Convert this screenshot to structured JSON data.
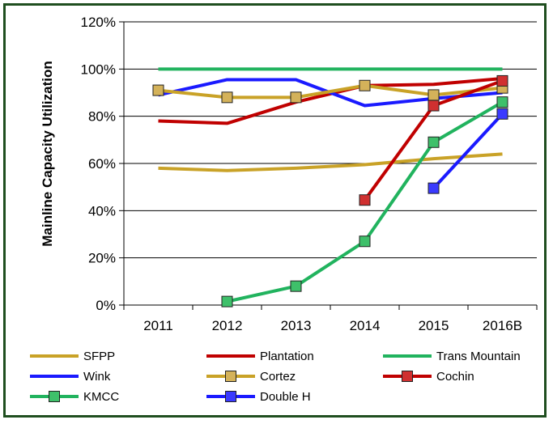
{
  "chart_data": {
    "type": "line",
    "title": "",
    "xlabel": "",
    "ylabel": "Mainline Capacity Utilization",
    "categories": [
      "2011",
      "2012",
      "2013",
      "2014",
      "2015",
      "2016B"
    ],
    "y_ticks": [
      "0%",
      "20%",
      "40%",
      "60%",
      "80%",
      "100%",
      "120%"
    ],
    "ylim": [
      0,
      120
    ],
    "grid": "horizontal",
    "legend_position": "bottom",
    "series": [
      {
        "name": "SFPP",
        "color": "#c9a227",
        "marker": "none",
        "values": [
          58,
          57,
          58,
          59.5,
          62,
          64
        ]
      },
      {
        "name": "Plantation",
        "color": "#c00000",
        "marker": "none",
        "values": [
          78,
          77,
          86,
          93,
          93.5,
          96
        ]
      },
      {
        "name": "Trans Mountain",
        "color": "#21b35e",
        "marker": "none",
        "values": [
          100,
          100,
          100,
          100,
          100,
          100
        ]
      },
      {
        "name": "Wink",
        "color": "#1a1aff",
        "marker": "none",
        "values": [
          89,
          95.5,
          95.5,
          84.5,
          87.5,
          90
        ]
      },
      {
        "name": "Cortez",
        "color": "#c9a227",
        "marker": "square",
        "values": [
          91,
          88,
          88,
          93,
          89,
          92
        ]
      },
      {
        "name": "Cochin",
        "color": "#c00000",
        "marker": "square",
        "values": [
          null,
          null,
          null,
          44.5,
          84.5,
          95
        ]
      },
      {
        "name": "KMCC",
        "color": "#21b35e",
        "marker": "square",
        "values": [
          null,
          1.5,
          8,
          27,
          69,
          86
        ]
      },
      {
        "name": "Double H",
        "color": "#1a1aff",
        "marker": "square",
        "values": [
          null,
          null,
          null,
          null,
          49.5,
          81
        ]
      }
    ]
  }
}
